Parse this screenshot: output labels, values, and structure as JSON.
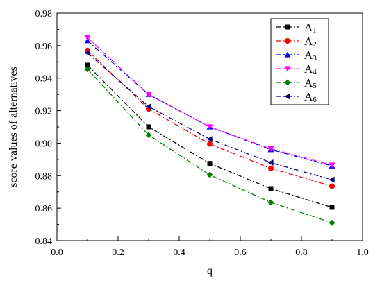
{
  "chart_data": {
    "type": "line",
    "xlabel": "q",
    "ylabel": "score values of alternatives",
    "xlim": [
      0.0,
      1.0
    ],
    "ylim": [
      0.84,
      0.98
    ],
    "xticks": [
      "0.0",
      "0.2",
      "0.4",
      "0.6",
      "0.8",
      "1.0"
    ],
    "yticks": [
      "0.84",
      "0.86",
      "0.88",
      "0.90",
      "0.92",
      "0.94",
      "0.96",
      "0.98"
    ],
    "x": [
      0.1,
      0.3,
      0.5,
      0.7,
      0.9
    ],
    "legend_position": "top-right",
    "grid": false,
    "series": [
      {
        "name": "A",
        "sub": "1",
        "color": "#000000",
        "marker": "square",
        "values": [
          0.948,
          0.91,
          0.8875,
          0.872,
          0.8605
        ]
      },
      {
        "name": "A",
        "sub": "2",
        "color": "#ff0000",
        "marker": "circle",
        "values": [
          0.957,
          0.921,
          0.8995,
          0.8845,
          0.8735
        ]
      },
      {
        "name": "A",
        "sub": "3",
        "color": "#0000ff",
        "marker": "triangle-up",
        "values": [
          0.963,
          0.93,
          0.91,
          0.896,
          0.886
        ]
      },
      {
        "name": "A",
        "sub": "4",
        "color": "#ff00ff",
        "marker": "triangle-down",
        "values": [
          0.965,
          0.93,
          0.91,
          0.8965,
          0.8865
        ]
      },
      {
        "name": "A",
        "sub": "5",
        "color": "#008000",
        "marker": "diamond",
        "values": [
          0.9455,
          0.905,
          0.8805,
          0.8635,
          0.851
        ]
      },
      {
        "name": "A",
        "sub": "6",
        "color": "#000080",
        "marker": "triangle-left",
        "values": [
          0.9555,
          0.9225,
          0.9025,
          0.888,
          0.8775
        ]
      }
    ]
  }
}
